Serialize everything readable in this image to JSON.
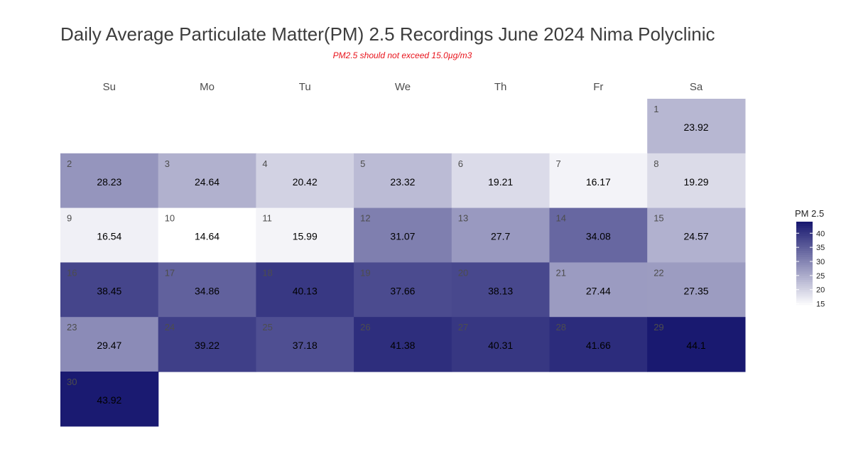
{
  "title": "Daily Average Particulate Matter(PM) 2.5 Recordings June 2024 Nima Polyclinic",
  "subtitle": "PM2.5 should not exceed 15.0µg/m3",
  "chart_data": {
    "type": "heatmap",
    "title": "Daily Average Particulate Matter(PM) 2.5 Recordings June 2024 Nima Polyclinic",
    "subtitle": "PM2.5 should not exceed 15.0µg/m3",
    "weekdays": [
      "Su",
      "Mo",
      "Tu",
      "We",
      "Th",
      "Fr",
      "Sa"
    ],
    "first_weekday_index": 6,
    "days": [
      1,
      2,
      3,
      4,
      5,
      6,
      7,
      8,
      9,
      10,
      11,
      12,
      13,
      14,
      15,
      16,
      17,
      18,
      19,
      20,
      21,
      22,
      23,
      24,
      25,
      26,
      27,
      28,
      29,
      30
    ],
    "values": [
      23.92,
      28.23,
      24.64,
      20.42,
      23.32,
      19.21,
      16.17,
      19.29,
      16.54,
      14.64,
      15.99,
      31.07,
      27.7,
      34.08,
      24.57,
      38.45,
      34.86,
      40.13,
      37.66,
      38.13,
      27.44,
      27.35,
      29.47,
      39.22,
      37.18,
      41.38,
      40.31,
      41.66,
      44.1,
      43.92
    ],
    "legend": {
      "title": "PM 2.5",
      "ticks": [
        40,
        35,
        30,
        25,
        20,
        15
      ],
      "range": [
        14.64,
        44.1
      ],
      "placement": "right"
    },
    "colors": {
      "low": "#ffffff",
      "high": "#191970"
    }
  }
}
